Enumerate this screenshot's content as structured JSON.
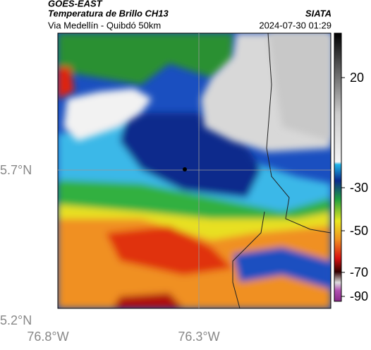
{
  "header": {
    "source": "GOES-EAST",
    "title": "Temperatura de Brillo CH13",
    "agency": "SIATA",
    "region": "Via Medellín - Quibdó 50km",
    "timestamp": "2024-07-30 01:29"
  },
  "map": {
    "lat_labels": [
      "5.7°N",
      "5.2°N"
    ],
    "lon_labels": [
      "76.8°W",
      "76.3°W"
    ]
  },
  "colorbar": {
    "ticks": [
      "20",
      "-30",
      "-50",
      "-70",
      "-90"
    ]
  }
}
